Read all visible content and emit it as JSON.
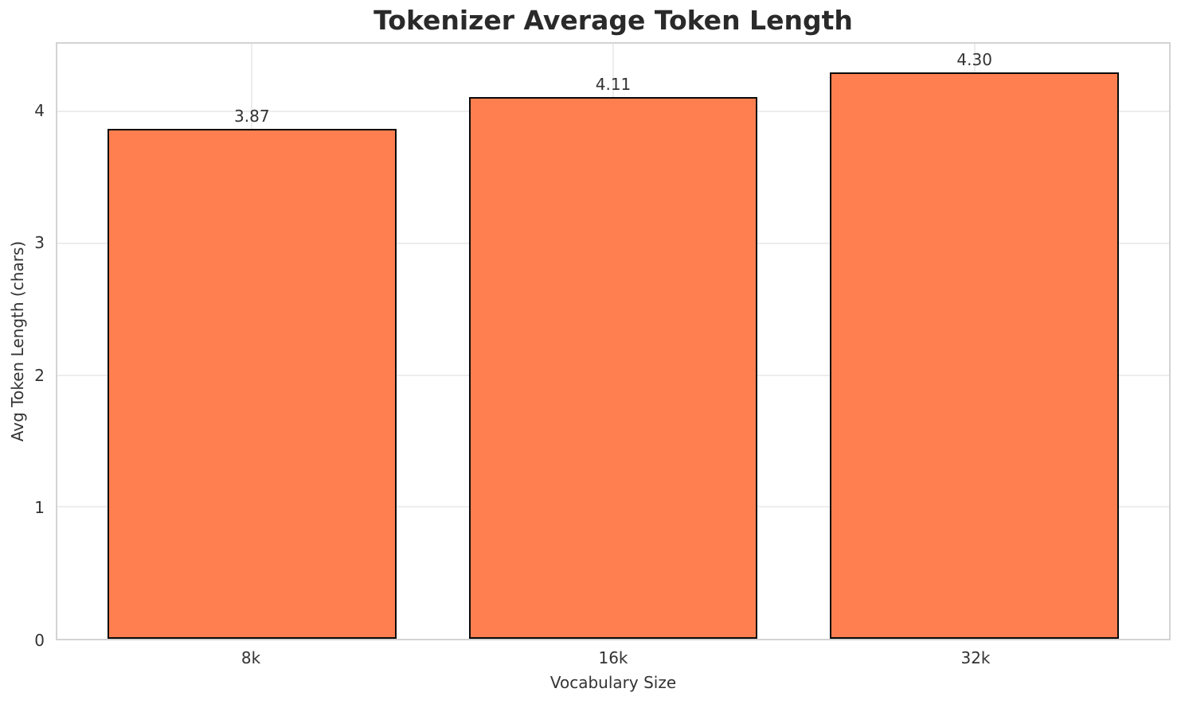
{
  "chart_data": {
    "type": "bar",
    "title": "Tokenizer Average Token Length",
    "xlabel": "Vocabulary Size",
    "ylabel": "Avg Token Length (chars)",
    "categories": [
      "8k",
      "16k",
      "32k"
    ],
    "values": [
      3.87,
      4.11,
      4.3
    ],
    "value_labels": [
      "3.87",
      "4.11",
      "4.30"
    ],
    "ylim": [
      0,
      4.515
    ],
    "yticks": [
      0,
      1,
      2,
      3,
      4
    ],
    "grid": true,
    "legend_position": "none",
    "colors": {
      "bar_fill": "#FF7F50",
      "bar_edge": "#0a0a0a",
      "grid": "#ededed",
      "spine": "#d3d3d3",
      "text": "#333333",
      "title_text": "#2a2a2a",
      "background": "#ffffff"
    }
  }
}
